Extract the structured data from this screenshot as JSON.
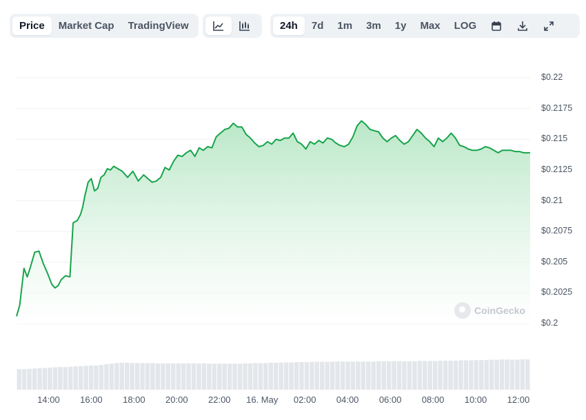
{
  "toolbar": {
    "data_tabs": [
      {
        "label": "Price",
        "active": true
      },
      {
        "label": "Market Cap",
        "active": false
      },
      {
        "label": "TradingView",
        "active": false
      }
    ],
    "chart_types": [
      {
        "icon": "line-chart-icon",
        "active": true
      },
      {
        "icon": "candlestick-chart-icon",
        "active": false
      }
    ],
    "ranges": [
      {
        "label": "24h",
        "active": true
      },
      {
        "label": "7d",
        "active": false
      },
      {
        "label": "1m",
        "active": false
      },
      {
        "label": "3m",
        "active": false
      },
      {
        "label": "1y",
        "active": false
      },
      {
        "label": "Max",
        "active": false
      },
      {
        "label": "LOG",
        "active": false
      }
    ],
    "tools": [
      "calendar-icon",
      "download-icon",
      "fullscreen-icon"
    ]
  },
  "watermark": "CoinGecko",
  "colors": {
    "line": "#16a34a",
    "fill_top": "#b6e6c4",
    "grid": "#eef0f3",
    "volume": "#e3e6ea"
  },
  "chart_data": {
    "type": "area",
    "title": "",
    "xlabel": "",
    "ylabel": "",
    "ylim": [
      0.2,
      0.22
    ],
    "y_ticks": [
      "$0.2",
      "$0.2025",
      "$0.205",
      "$0.2075",
      "$0.21",
      "$0.2125",
      "$0.215",
      "$0.2175",
      "$0.22"
    ],
    "y_tick_values": [
      0.2,
      0.2025,
      0.205,
      0.2075,
      0.21,
      0.2125,
      0.215,
      0.2175,
      0.22
    ],
    "x_ticks": [
      "14:00",
      "16:00",
      "18:00",
      "20:00",
      "22:00",
      "16. May",
      "02:00",
      "04:00",
      "06:00",
      "08:00",
      "10:00",
      "12:00"
    ],
    "x_tick_hours": [
      14,
      16,
      18,
      20,
      22,
      24,
      26,
      28,
      30,
      32,
      34,
      36
    ],
    "x_range_hours": [
      12.5,
      36.55
    ],
    "series": [
      {
        "x": [
          12.5,
          12.65,
          12.85,
          13.0,
          13.15,
          13.35,
          13.55,
          13.75,
          13.95,
          14.15,
          14.3,
          14.45,
          14.6,
          14.8,
          15.0,
          15.15,
          15.35,
          15.5,
          15.6,
          15.7,
          15.85,
          16.0,
          16.15,
          16.3,
          16.45,
          16.6,
          16.75,
          16.9,
          17.05,
          17.25,
          17.45,
          17.7,
          17.95,
          18.2,
          18.45,
          18.65,
          18.85,
          19.05,
          19.25,
          19.45,
          19.65,
          19.85,
          20.05,
          20.25,
          20.45,
          20.65,
          20.85,
          21.05,
          21.25,
          21.45,
          21.65,
          21.85,
          22.05,
          22.25,
          22.45,
          22.65,
          22.85,
          23.05,
          23.25,
          23.45,
          23.65,
          23.85,
          24.05,
          24.25,
          24.45,
          24.65,
          24.85,
          25.05,
          25.25,
          25.45,
          25.65,
          25.85,
          26.05,
          26.25,
          26.45,
          26.65,
          26.85,
          27.05,
          27.25,
          27.45,
          27.65,
          27.85,
          28.05,
          28.25,
          28.45,
          28.65,
          28.85,
          29.05,
          29.25,
          29.45,
          29.65,
          29.85,
          30.05,
          30.25,
          30.45,
          30.65,
          30.85,
          31.05,
          31.25,
          31.45,
          31.65,
          31.85,
          32.05,
          32.25,
          32.45,
          32.65,
          32.85,
          33.05,
          33.25,
          33.45,
          33.65,
          33.85,
          34.05,
          34.25,
          34.45,
          34.65,
          34.85,
          35.05,
          35.25,
          35.45,
          35.65,
          35.85,
          36.05,
          36.25,
          36.55
        ],
        "y": [
          0.2006,
          0.2015,
          0.2045,
          0.2038,
          0.2046,
          0.2058,
          0.2059,
          0.2049,
          0.2041,
          0.2032,
          0.2029,
          0.2031,
          0.2036,
          0.2039,
          0.2038,
          0.2082,
          0.2084,
          0.2089,
          0.2095,
          0.2104,
          0.2115,
          0.2118,
          0.2108,
          0.211,
          0.2119,
          0.2121,
          0.2126,
          0.2125,
          0.2128,
          0.2126,
          0.2124,
          0.2119,
          0.2124,
          0.2116,
          0.2121,
          0.2118,
          0.2115,
          0.2116,
          0.2119,
          0.2127,
          0.2125,
          0.2132,
          0.2137,
          0.2136,
          0.2139,
          0.2141,
          0.2136,
          0.2143,
          0.2141,
          0.2144,
          0.2143,
          0.2152,
          0.2155,
          0.2158,
          0.2159,
          0.2163,
          0.216,
          0.216,
          0.2154,
          0.2151,
          0.2147,
          0.2144,
          0.2145,
          0.2148,
          0.2146,
          0.215,
          0.2149,
          0.2151,
          0.2151,
          0.2155,
          0.2148,
          0.2146,
          0.2142,
          0.2148,
          0.2146,
          0.2149,
          0.2147,
          0.2151,
          0.215,
          0.2147,
          0.2145,
          0.2144,
          0.2146,
          0.2152,
          0.2161,
          0.2165,
          0.2162,
          0.2158,
          0.2157,
          0.2156,
          0.2151,
          0.2148,
          0.2151,
          0.2153,
          0.2149,
          0.2146,
          0.2148,
          0.2153,
          0.2158,
          0.2155,
          0.2151,
          0.2148,
          0.2144,
          0.2151,
          0.2148,
          0.2151,
          0.2155,
          0.2151,
          0.2145,
          0.2144,
          0.2142,
          0.2141,
          0.2141,
          0.2142,
          0.2144,
          0.2143,
          0.2141,
          0.2139,
          0.2141,
          0.2141,
          0.2141,
          0.214,
          0.214,
          0.2139,
          0.2139
        ]
      }
    ],
    "volume_relative": [
      0.68,
      0.68,
      0.69,
      0.7,
      0.71,
      0.72,
      0.73,
      0.74,
      0.75,
      0.75,
      0.76,
      0.77,
      0.78,
      0.79,
      0.8,
      0.8,
      0.82,
      0.84,
      0.86,
      0.88,
      0.89,
      0.89,
      0.88,
      0.88,
      0.88,
      0.88,
      0.88,
      0.87,
      0.87,
      0.87,
      0.87,
      0.87,
      0.87,
      0.87,
      0.87,
      0.87,
      0.87,
      0.86,
      0.86,
      0.86,
      0.86,
      0.86,
      0.86,
      0.86,
      0.87,
      0.87,
      0.88,
      0.88,
      0.88,
      0.89,
      0.89,
      0.9,
      0.9,
      0.9,
      0.91,
      0.91,
      0.91,
      0.92,
      0.92,
      0.92,
      0.92,
      0.93,
      0.93,
      0.93,
      0.93,
      0.93,
      0.93,
      0.93,
      0.93,
      0.93,
      0.94,
      0.94,
      0.94,
      0.94,
      0.94,
      0.94,
      0.94,
      0.94,
      0.95,
      0.95,
      0.95,
      0.95,
      0.96,
      0.96,
      0.96,
      0.96,
      0.97,
      0.97,
      0.97,
      0.98,
      0.98,
      0.98,
      0.99,
      0.99,
      1.0,
      1.0,
      0.99,
      0.99,
      1.0,
      1.0
    ],
    "grid": true,
    "legend": "none"
  }
}
